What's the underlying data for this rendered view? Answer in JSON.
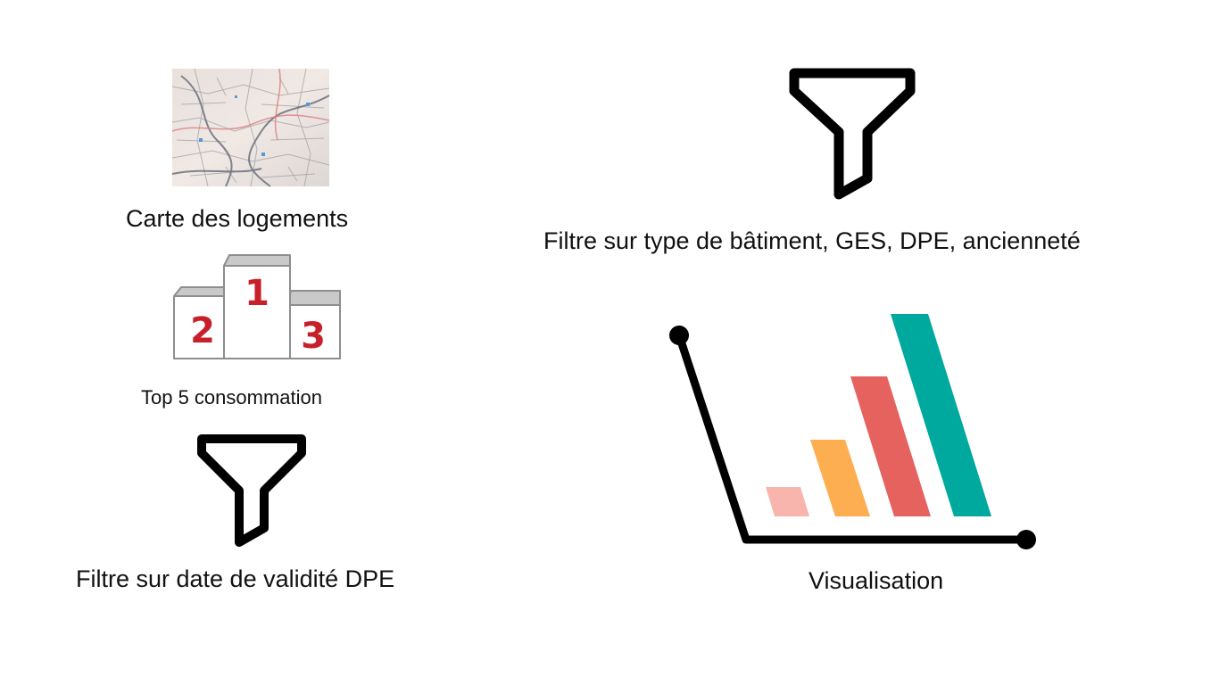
{
  "map_card": {
    "label": "Carte des logements",
    "icon": "map-photo-icon"
  },
  "podium_card": {
    "label": "Top 5 consommation",
    "icon": "podium-icon",
    "ranks": [
      "1",
      "2",
      "3"
    ],
    "rank_color": "#c8202a"
  },
  "date_filter_card": {
    "label": "Filtre sur date de validité  DPE",
    "icon": "funnel-icon"
  },
  "type_filter_card": {
    "label": "Filtre sur type de bâtiment, GES, DPE, ancienneté",
    "icon": "funnel-icon"
  },
  "visualisation_card": {
    "label": "Visualisation",
    "icon": "bar-chart-icon",
    "bar_colors": [
      "#f7b5ae",
      "#fdae51",
      "#e5625e",
      "#00a99d"
    ]
  }
}
